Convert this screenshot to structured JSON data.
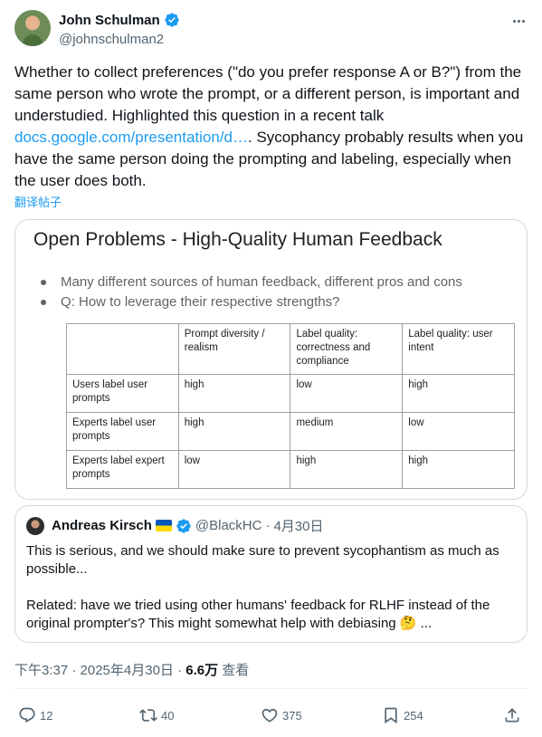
{
  "author": {
    "display_name": "John Schulman",
    "handle": "@johnschulman2"
  },
  "tweet": {
    "text_1": "Whether to collect preferences (\"do you prefer response A or B?\") from the same person who wrote the prompt, or a different person, is important and understudied. Highlighted this question in a recent talk ",
    "link": "docs.google.com/presentation/d…",
    "text_2": ". Sycophancy probably results when you have the same person doing the prompting and labeling, especially when the user does both.",
    "translate_label": "翻译帖子"
  },
  "slide": {
    "title": "Open Problems - High-Quality Human Feedback",
    "bullets": [
      "Many different sources of human feedback, different pros and cons",
      "Q: How to leverage their respective strengths?"
    ],
    "table": {
      "header": [
        "",
        "Prompt diversity / realism",
        "Label quality: correctness and compliance",
        "Label quality: user intent"
      ],
      "rows": [
        [
          "Users label user prompts",
          "high",
          "low",
          "high"
        ],
        [
          "Experts label user prompts",
          "high",
          "medium",
          "low"
        ],
        [
          "Experts label expert prompts",
          "low",
          "high",
          "high"
        ]
      ]
    }
  },
  "quote": {
    "display_name": "Andreas Kirsch",
    "handle": "@BlackHC",
    "separator": "·",
    "date": "4月30日",
    "paragraph_1": "This is serious, and we should make sure to prevent sycophantism as much as possible...",
    "paragraph_2": "Related: have we tried using other humans' feedback for RLHF instead of the original prompter's? This might somewhat help with debiasing 🤔 ..."
  },
  "meta": {
    "time": "下午3:37 · 2025年4月30日 · ",
    "views_count": "6.6万",
    "views_label": " 查看"
  },
  "actions": {
    "replies": "12",
    "reposts": "40",
    "likes": "375",
    "bookmarks": "254"
  },
  "colors": {
    "accent": "#1d9bf0",
    "secondary_text": "#536471",
    "border": "#cfd9de"
  }
}
